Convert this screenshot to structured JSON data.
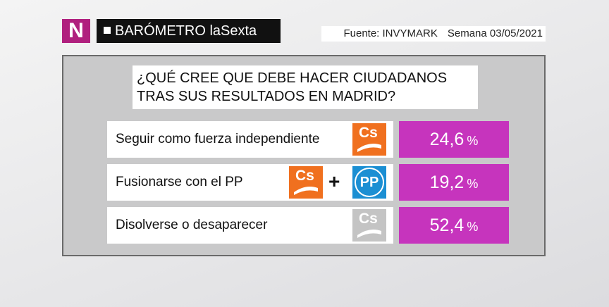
{
  "header": {
    "logo": "N",
    "title": "BARÓMETRO laSexta",
    "source": "Fuente: INVYMARK",
    "week": "Semana 03/05/2021"
  },
  "question": [
    "¿QUÉ CREE QUE DEBE HACER CIUDADANOS",
    "TRAS SUS RESULTADOS EN MADRID?"
  ],
  "logos": {
    "cs": "Cs",
    "pp": "PP",
    "plus": "+"
  },
  "rows": [
    {
      "label": "Seguir como fuerza independiente",
      "value": "24,6",
      "unit": "%"
    },
    {
      "label": "Fusionarse con el PP",
      "value": "19,2",
      "unit": "%"
    },
    {
      "label": "Disolverse o desaparecer",
      "value": "52,4",
      "unit": "%"
    }
  ]
}
